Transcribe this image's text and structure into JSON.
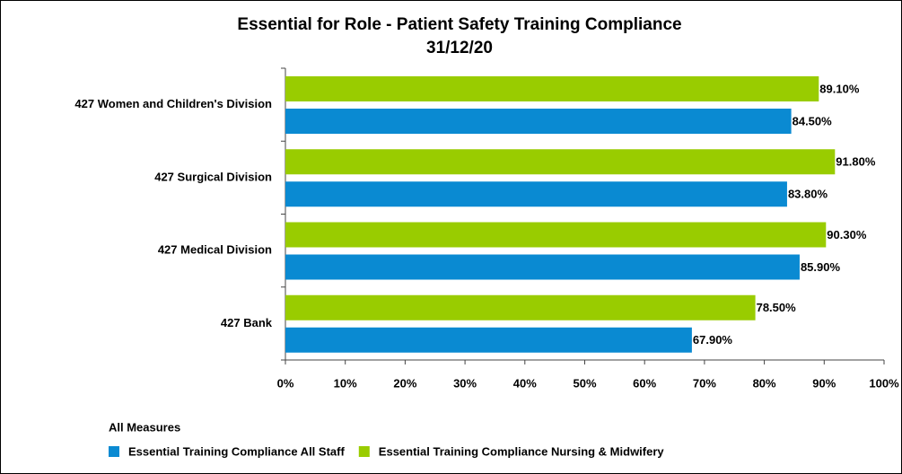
{
  "chart_data": {
    "type": "bar",
    "orientation": "horizontal",
    "title": "Essential for Role - Patient Safety Training Compliance",
    "subtitle": "31/12/20",
    "categories": [
      "427 Women and Children's Division",
      "427 Surgical Division",
      "427 Medical Division",
      "427 Bank"
    ],
    "series": [
      {
        "name": "Essential Training Compliance All Staff",
        "color": "#0a8ad2",
        "values": [
          84.5,
          83.8,
          85.9,
          67.9
        ],
        "value_labels": [
          "84.50%",
          "83.80%",
          "85.90%",
          "67.90%"
        ]
      },
      {
        "name": "Essential Training Compliance Nursing & Midwifery",
        "color": "#99cc00",
        "values": [
          89.1,
          91.8,
          90.3,
          78.5
        ],
        "value_labels": [
          "89.10%",
          "91.80%",
          "90.30%",
          "78.50%"
        ]
      }
    ],
    "xlim": [
      0,
      100
    ],
    "xticks": [
      {
        "value": 0,
        "label": "0%"
      },
      {
        "value": 10,
        "label": "10%"
      },
      {
        "value": 20,
        "label": "20%"
      },
      {
        "value": 30,
        "label": "30%"
      },
      {
        "value": 40,
        "label": "40%"
      },
      {
        "value": 50,
        "label": "50%"
      },
      {
        "value": 60,
        "label": "60%"
      },
      {
        "value": 70,
        "label": "70%"
      },
      {
        "value": 80,
        "label": "80%"
      },
      {
        "value": 90,
        "label": "90%"
      },
      {
        "value": 100,
        "label": "100%"
      }
    ],
    "legend_title": "All Measures",
    "legend": "bottom-left"
  }
}
